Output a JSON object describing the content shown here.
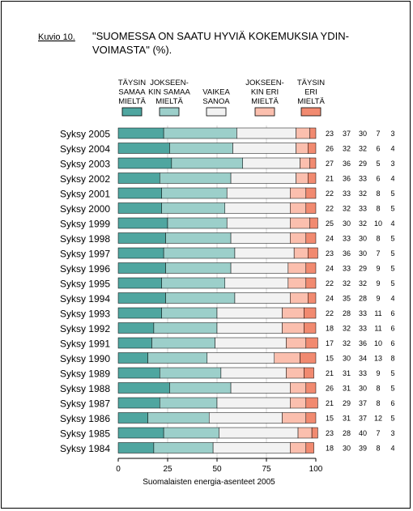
{
  "figure": {
    "label": "Kuvio 10.",
    "title_line1": "\"SUOMESSA ON SAATU HYVIÄ KOKEMUKSIA YDIN-",
    "title_line2": "VOIMASTA\" (%).",
    "source": "Suomalaisten energia-asenteet 2005"
  },
  "chart_data": {
    "type": "bar",
    "stacked": true,
    "orientation": "horizontal",
    "categories": [
      "Syksy 2005",
      "Syksy 2004",
      "Syksy 2003",
      "Syksy 2002",
      "Syksy 2001",
      "Syksy 2000",
      "Syksy 1999",
      "Syksy 1998",
      "Syksy 1997",
      "Syksy 1996",
      "Syksy 1995",
      "Syksy 1994",
      "Syksy 1993",
      "Syksy 1992",
      "Syksy 1991",
      "Syksy 1990",
      "Syksy 1989",
      "Syksy 1988",
      "Syksy 1987",
      "Syksy 1986",
      "Syksy 1985",
      "Syksy 1984"
    ],
    "series": [
      {
        "name": [
          "TÄYSIN",
          "SAMAA",
          "MIELTÄ"
        ],
        "color": "#4fa6a0",
        "values": [
          23,
          26,
          27,
          21,
          22,
          22,
          25,
          24,
          23,
          24,
          22,
          24,
          22,
          18,
          17,
          15,
          21,
          26,
          21,
          15,
          23,
          18
        ]
      },
      {
        "name": [
          "JOKSEEN-",
          "KIN SAMAA",
          "MIELTÄ"
        ],
        "color": "#9ccfca",
        "values": [
          37,
          32,
          36,
          36,
          33,
          32,
          30,
          33,
          36,
          33,
          32,
          35,
          28,
          32,
          32,
          30,
          31,
          31,
          29,
          31,
          28,
          30
        ]
      },
      {
        "name": [
          "VAIKEA",
          "SANOA"
        ],
        "color": "#f2f2f2",
        "values": [
          30,
          32,
          29,
          33,
          32,
          33,
          32,
          30,
          30,
          29,
          32,
          28,
          33,
          33,
          36,
          34,
          33,
          30,
          37,
          37,
          40,
          39
        ]
      },
      {
        "name": [
          "JOKSEEN-",
          "KIN ERI",
          "MIELTÄ"
        ],
        "color": "#fbbfae",
        "values": [
          7,
          6,
          5,
          6,
          8,
          8,
          10,
          8,
          7,
          9,
          9,
          9,
          11,
          11,
          10,
          13,
          9,
          8,
          8,
          12,
          7,
          8
        ]
      },
      {
        "name": [
          "TÄYSIN",
          "ERI",
          "MIELTÄ"
        ],
        "color": "#f18a70",
        "values": [
          3,
          4,
          3,
          4,
          5,
          5,
          4,
          5,
          5,
          5,
          5,
          4,
          6,
          6,
          6,
          8,
          5,
          5,
          6,
          5,
          3,
          4
        ]
      }
    ],
    "xlim": [
      0,
      100
    ],
    "xticks": [
      "0",
      "25",
      "50",
      "75",
      "100"
    ],
    "xlabel": "Suomalaisten energia-asenteet 2005",
    "legend": "top"
  }
}
